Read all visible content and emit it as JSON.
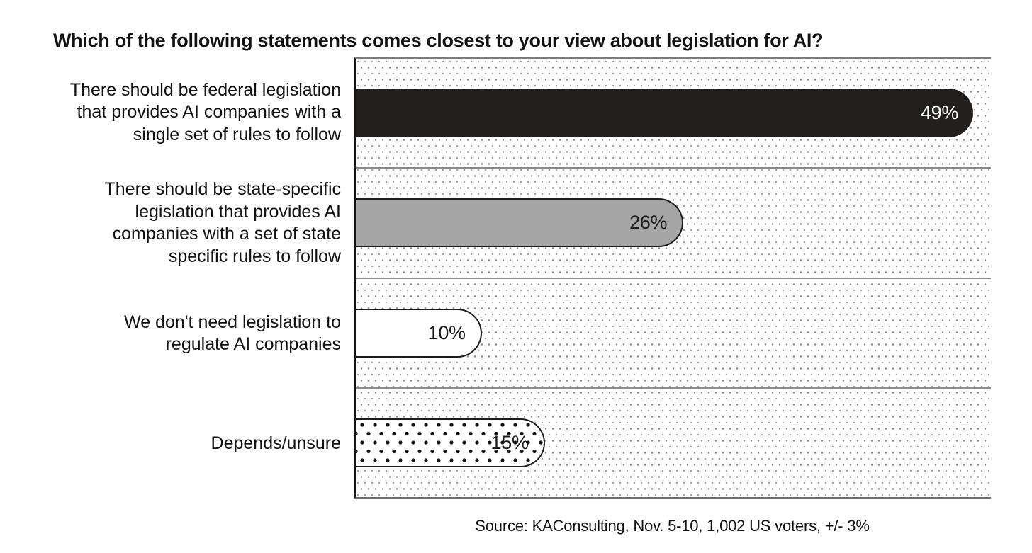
{
  "title": "Which of the following statements comes closest to your view about legislation for AI?",
  "source": "Source: KAConsulting, Nov. 5-10, 1,002 US voters, +/- 3%",
  "colors": {
    "bar_dark": "#221f1f",
    "bar_gray": "#a6a6a6",
    "bar_white": "#ffffff",
    "bar_outline": "#1d1b1b",
    "grid_line": "#8c8c8c",
    "text": "#121212",
    "value_on_dark": "#ffffff"
  },
  "chart_data": {
    "type": "bar",
    "orientation": "horizontal",
    "title": "Which of the following statements comes closest to your view about legislation for AI?",
    "xlabel": "",
    "ylabel": "",
    "xlim": [
      0,
      50.4
    ],
    "grid": "dotted-background",
    "legend": "none",
    "categories": [
      "There should be federal legislation that provides AI companies with a single set of rules to follow",
      "There should be state-specific legislation that provides AI companies with a set of state specific rules to follow",
      "We don't need legislation to regulate AI companies",
      "Depends/unsure"
    ],
    "values": [
      49,
      26,
      10,
      15
    ],
    "bars": [
      {
        "label": "There should be federal legislation\nthat provides AI companies with a\nsingle set of rules to follow",
        "value": 49,
        "value_label": "49%",
        "fill": "#221f1f",
        "text_color": "#ffffff",
        "outlined": false,
        "pattern": "solid"
      },
      {
        "label": "There should be state-specific\nlegislation that provides AI\ncompanies with a set of state\nspecific rules to follow",
        "value": 26,
        "value_label": "26%",
        "fill": "#a6a6a6",
        "text_color": "#1d1b1b",
        "outlined": true,
        "pattern": "solid"
      },
      {
        "label": "We don't need legislation to\nregulate AI companies",
        "value": 10,
        "value_label": "10%",
        "fill": "#ffffff",
        "text_color": "#1d1b1b",
        "outlined": true,
        "pattern": "solid"
      },
      {
        "label": "Depends/unsure",
        "value": 15,
        "value_label": "15%",
        "fill": "#ffffff",
        "text_color": "#1d1b1b",
        "outlined": true,
        "pattern": "polka-dot"
      }
    ]
  }
}
